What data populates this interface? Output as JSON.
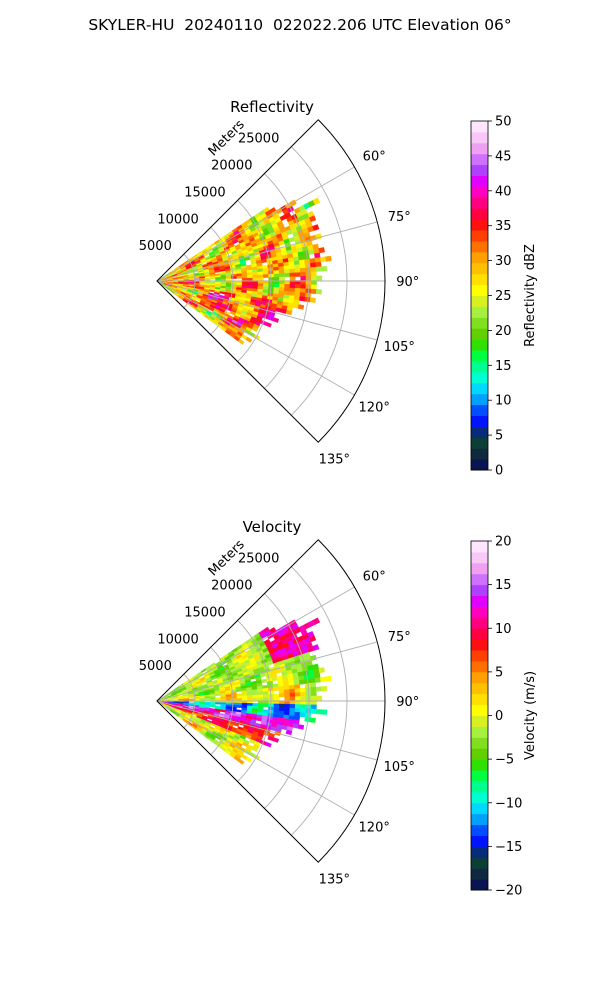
{
  "suptitle": "SKYLER-HU  20240110  022022.206 UTC Elevation 06°",
  "chart_data": [
    {
      "type": "heatmap",
      "title": "Reflectivity",
      "radial_label": "Meters",
      "range_ticks": [
        5000,
        10000,
        15000,
        20000,
        25000
      ],
      "range_tick_labels": [
        "5000",
        "10000",
        "15000",
        "20000",
        "25000"
      ],
      "rmax": 30000,
      "azimuth_ticks": [
        60,
        75,
        90,
        105,
        120,
        135
      ],
      "azimuth_tick_labels": [
        "60°",
        "75°",
        "90°",
        "105°",
        "120°",
        "135°"
      ],
      "azimuth_range": [
        45,
        135
      ],
      "grid": true,
      "field": {
        "range_extent_m": [
          0,
          22000
        ],
        "azimuth_extent_deg": [
          55,
          125
        ],
        "description": "mostly 20-40 dBZ, peaks near 40+ dBZ"
      },
      "colorbar": {
        "label": "Reflectivity dBZ",
        "min": 0,
        "max": 50,
        "ticks": [
          0,
          5,
          10,
          15,
          20,
          25,
          30,
          35,
          40,
          45,
          50
        ],
        "tick_labels": [
          "0",
          "5",
          "10",
          "15",
          "20",
          "25",
          "30",
          "35",
          "40",
          "45",
          "50"
        ],
        "colors": [
          "#0a1450",
          "#0f2a3e",
          "#0b3e36",
          "#0a2a7a",
          "#0014ff",
          "#0050ff",
          "#00a0ff",
          "#00d8ff",
          "#00ffd0",
          "#00ff90",
          "#00ff40",
          "#30e000",
          "#60d000",
          "#80e020",
          "#a8f040",
          "#d8f020",
          "#ffff00",
          "#ffe000",
          "#ffc000",
          "#ffa000",
          "#ff7000",
          "#ff4000",
          "#ff1010",
          "#ff0040",
          "#ff0080",
          "#ff00c0",
          "#e000ff",
          "#b040ff",
          "#d070ff",
          "#f0a0f0",
          "#f8c8f8",
          "#fde6fd"
        ]
      }
    },
    {
      "type": "heatmap",
      "title": "Velocity",
      "radial_label": "Meters",
      "range_ticks": [
        5000,
        10000,
        15000,
        20000,
        25000
      ],
      "range_tick_labels": [
        "5000",
        "10000",
        "15000",
        "20000",
        "25000"
      ],
      "rmax": 30000,
      "azimuth_ticks": [
        60,
        75,
        90,
        105,
        120,
        135
      ],
      "azimuth_tick_labels": [
        "60°",
        "75°",
        "90°",
        "105°",
        "120°",
        "135°"
      ],
      "azimuth_range": [
        45,
        135
      ],
      "grid": true,
      "field": {
        "range_extent_m": [
          0,
          22000
        ],
        "azimuth_extent_deg": [
          55,
          125
        ],
        "description": "inbound (-10 to -15 m/s) band near 95-100°, outbound (+5 to +15 m/s) band near 100-110° and far range near 60-70°"
      },
      "colorbar": {
        "label": "Velocity (m/s)",
        "min": -20,
        "max": 20,
        "ticks": [
          -20,
          -15,
          -10,
          -5,
          0,
          5,
          10,
          15,
          20
        ],
        "tick_labels": [
          "−20",
          "−15",
          "−10",
          "−5",
          "0",
          "5",
          "10",
          "15",
          "20"
        ],
        "colors": [
          "#0a1450",
          "#0f2a3e",
          "#0b3e36",
          "#0a2a7a",
          "#0014ff",
          "#0050ff",
          "#00a0ff",
          "#00d8ff",
          "#00ffd0",
          "#00ff90",
          "#00ff40",
          "#30e000",
          "#60d000",
          "#80e020",
          "#a8f040",
          "#d8f020",
          "#ffff00",
          "#ffe000",
          "#ffc000",
          "#ffa000",
          "#ff7000",
          "#ff4000",
          "#ff1010",
          "#ff0040",
          "#ff0080",
          "#ff00c0",
          "#e000ff",
          "#b040ff",
          "#d070ff",
          "#f0a0f0",
          "#f8c8f8",
          "#fde6fd"
        ]
      }
    }
  ]
}
